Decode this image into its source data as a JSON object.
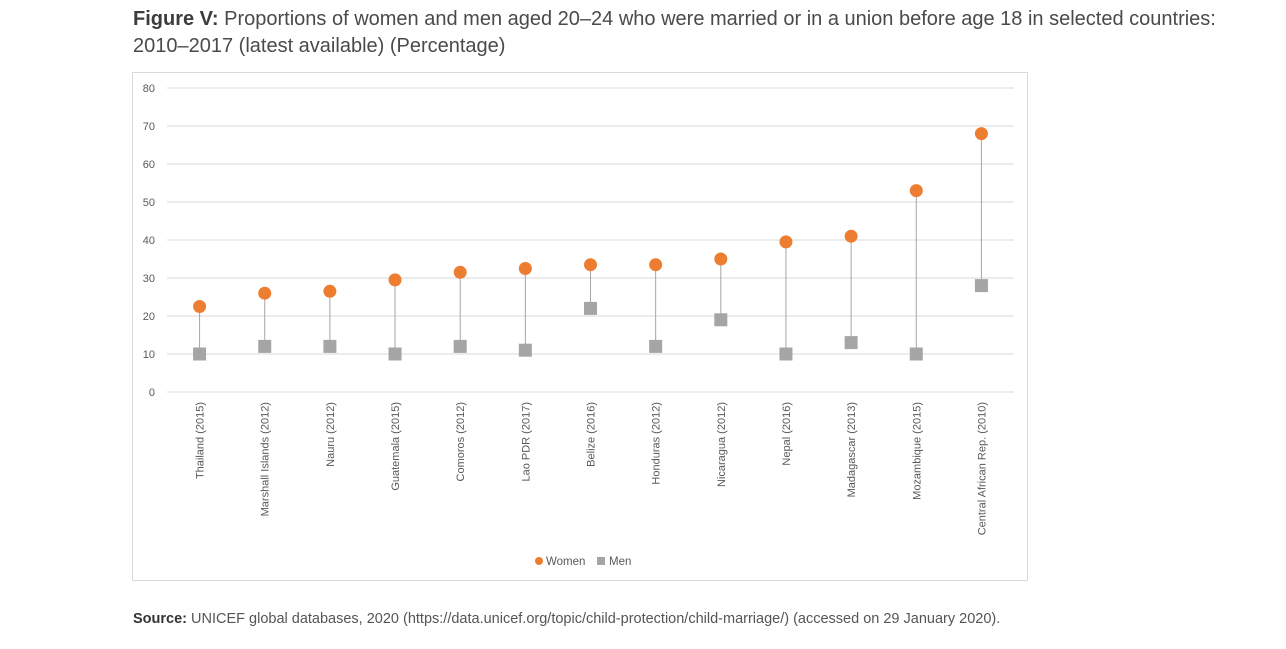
{
  "header": {
    "figure_label": "Figure V:",
    "title_text": "Proportions of women and men aged 20–24 who were married or in a union before age 18 in selected countries: 2010–2017 (latest available) (Percentage)"
  },
  "chart_data": {
    "type": "scatter",
    "title": "",
    "xlabel": "",
    "ylabel": "",
    "ylim": [
      0,
      80
    ],
    "yticks": [
      0,
      10,
      20,
      30,
      40,
      50,
      60,
      70,
      80
    ],
    "grid": true,
    "legend_position": "bottom",
    "categories": [
      "Thailand (2015)",
      "Marshall Islands (2012)",
      "Nauru (2012)",
      "Guatemala (2015)",
      "Comoros (2012)",
      "Lao PDR (2017)",
      "Belize (2016)",
      "Honduras (2012)",
      "Nicaragua (2012)",
      "Nepal (2016)",
      "Madagascar (2013)",
      "Mozambique (2015)",
      "Central African Rep. (2010)"
    ],
    "series": [
      {
        "name": "Women",
        "marker": "circle",
        "color": "#ED7D31",
        "values": [
          22.5,
          26,
          26.5,
          29.5,
          31.5,
          32.5,
          33.5,
          33.5,
          35,
          39.5,
          41,
          53,
          68
        ]
      },
      {
        "name": "Men",
        "marker": "square",
        "color": "#A5A5A5",
        "values": [
          10,
          12,
          12,
          10,
          12,
          11,
          22,
          12,
          19,
          10,
          13,
          10,
          28
        ]
      }
    ],
    "connector_color": "#A5A5A5"
  },
  "footer": {
    "source_label": "Source:",
    "source_text": "UNICEF global databases, 2020 (https://data.unicef.org/topic/child-protection/child-marriage/) (accessed on 29 January 2020)."
  }
}
